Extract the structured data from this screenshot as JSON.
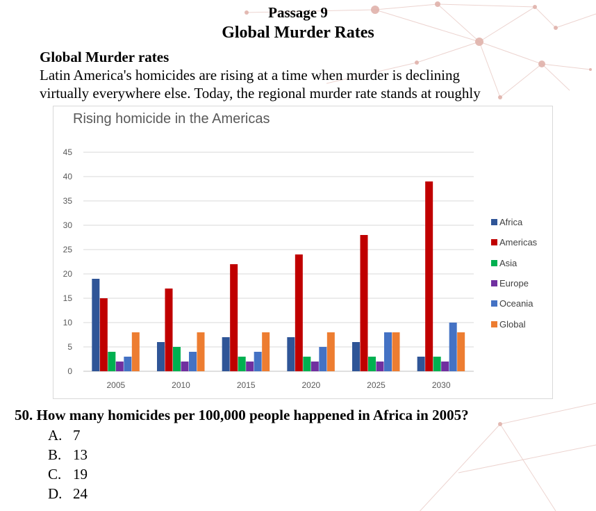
{
  "passage": {
    "label": "Passage 9",
    "title": "Global Murder Rates",
    "heading": "Global Murder rates",
    "lines": [
      "Latin America's homicides are rising at a time when murder is declining",
      "virtually everywhere else. Today, the regional murder rate stands at roughly"
    ]
  },
  "chart_data": {
    "type": "bar",
    "title": "Rising homicide in the Americas",
    "categories": [
      "2005",
      "2010",
      "2015",
      "2020",
      "2025",
      "2030"
    ],
    "series": [
      {
        "name": "Africa",
        "color": "#2f5597",
        "values": [
          19,
          6,
          7,
          7,
          6,
          3
        ]
      },
      {
        "name": "Americas",
        "color": "#c00000",
        "values": [
          15,
          17,
          22,
          24,
          28,
          39
        ]
      },
      {
        "name": "Asia",
        "color": "#00b050",
        "values": [
          4,
          5,
          3,
          3,
          3,
          3
        ]
      },
      {
        "name": "Europe",
        "color": "#7030a0",
        "values": [
          2,
          2,
          2,
          2,
          2,
          2
        ]
      },
      {
        "name": "Oceania",
        "color": "#4472c4",
        "values": [
          3,
          4,
          4,
          5,
          8,
          10
        ]
      },
      {
        "name": "Global",
        "color": "#ed7d31",
        "values": [
          8,
          8,
          8,
          8,
          8,
          8
        ]
      }
    ],
    "yticks": [
      "0",
      "5",
      "10",
      "15",
      "20",
      "25",
      "30",
      "35",
      "40",
      "45"
    ],
    "ylim": [
      0,
      45
    ],
    "xlabel": "",
    "ylabel": "",
    "grid": true,
    "legend_position": "right"
  },
  "question": {
    "text": "50. How many homicides per 100,000 people happened in Africa in 2005?",
    "options": [
      {
        "letter": "A.",
        "value": "7"
      },
      {
        "letter": "B.",
        "value": "13"
      },
      {
        "letter": "C.",
        "value": "19"
      },
      {
        "letter": "D.",
        "value": "24"
      }
    ]
  }
}
